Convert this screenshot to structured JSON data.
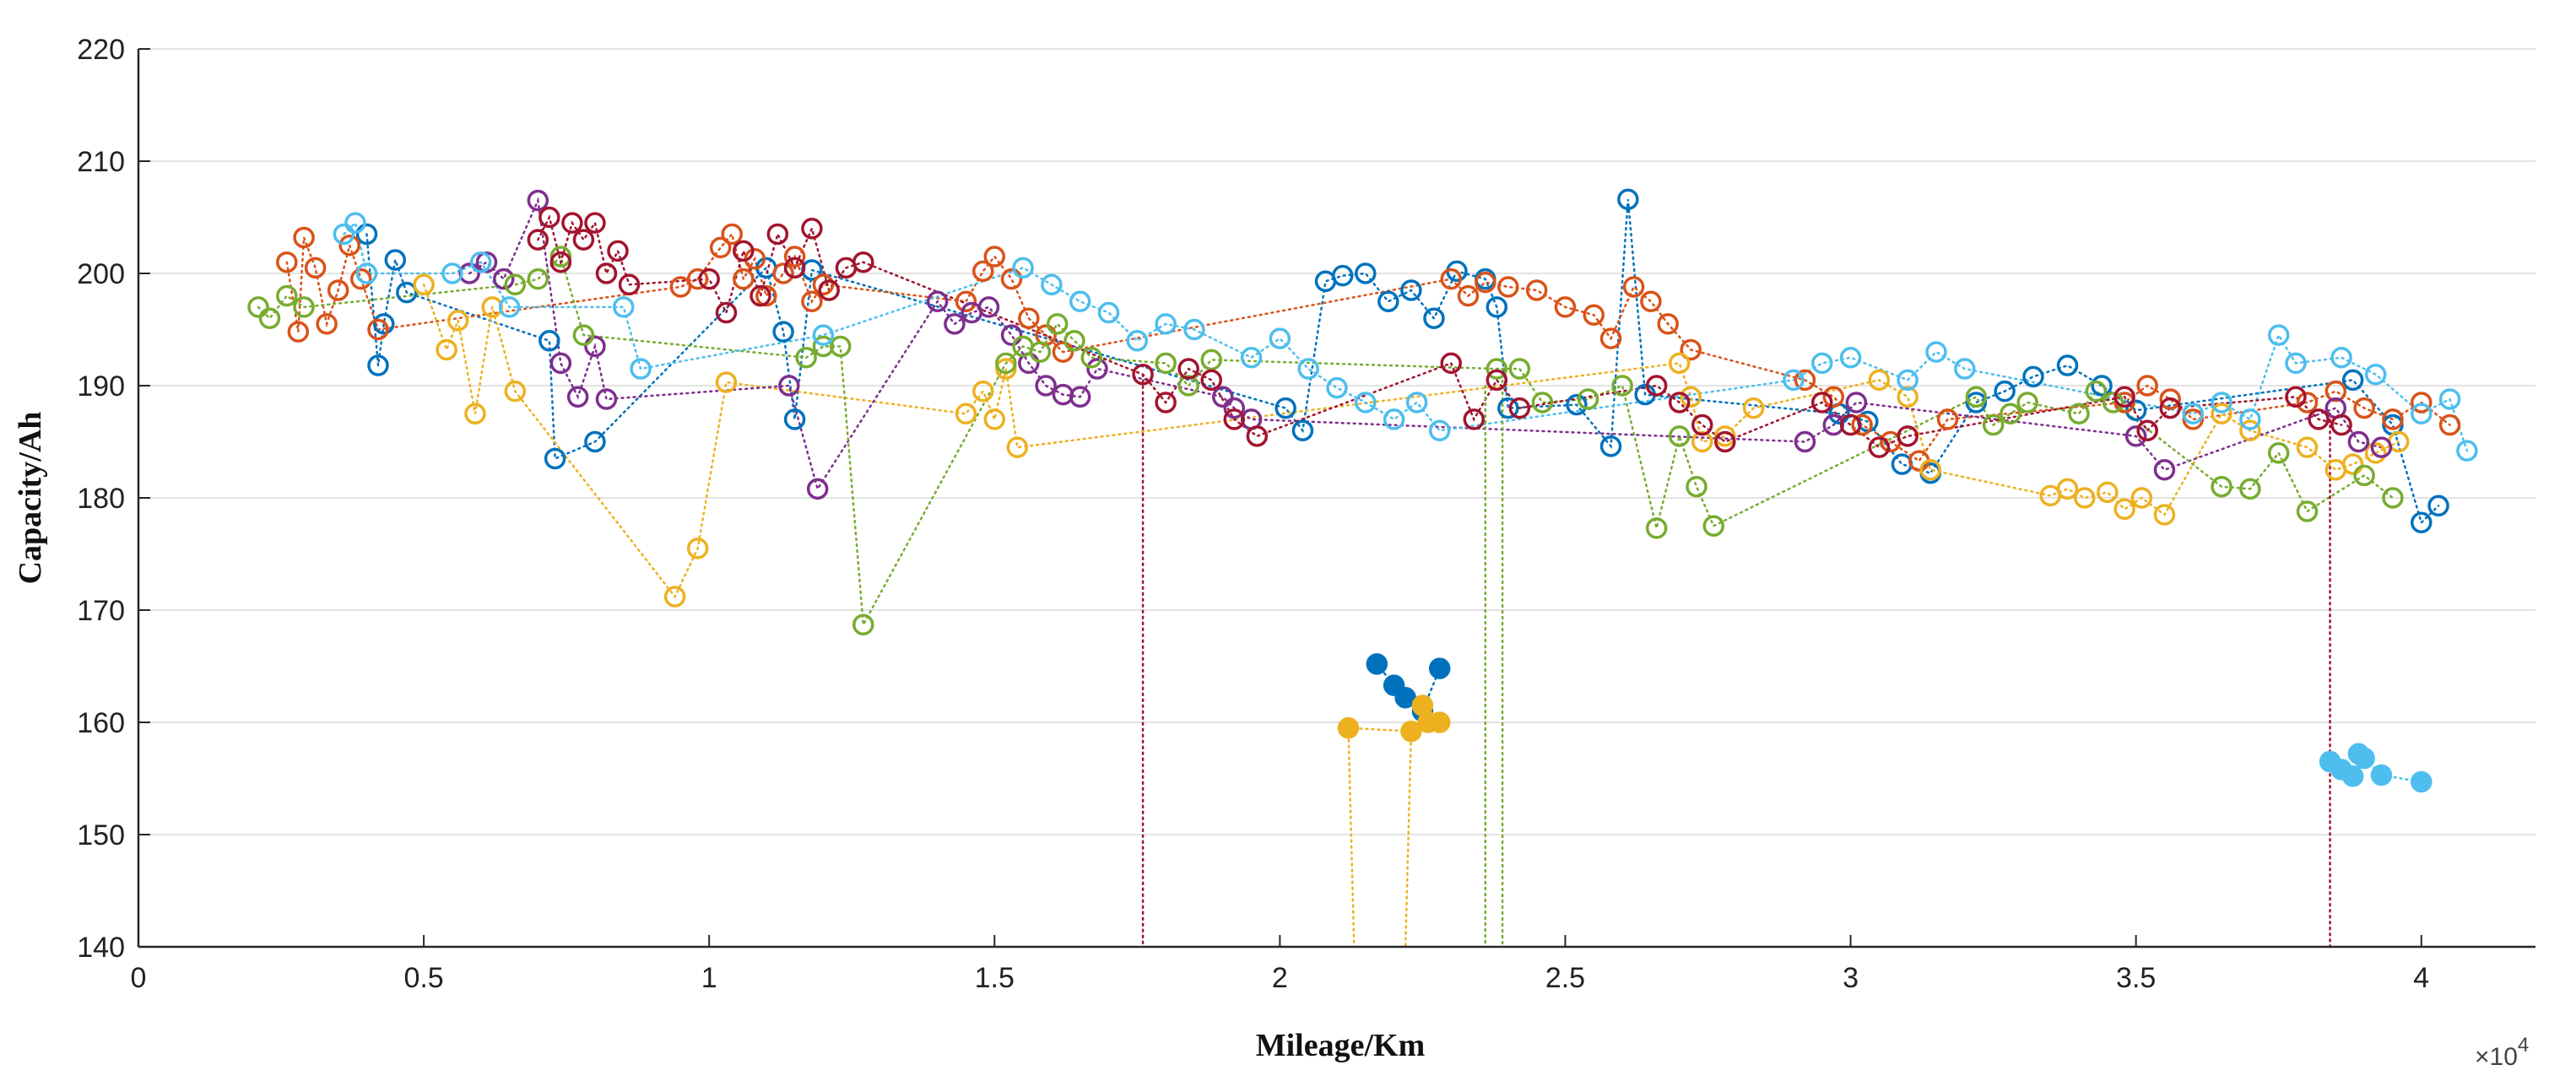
{
  "chart_data": {
    "type": "scatter",
    "title": "",
    "xlabel": "Mileage/Km",
    "ylabel": "Capacity/Ah",
    "x_multiplier_label": "×10",
    "x_multiplier_exponent": "4",
    "xlim": [
      0,
      4.2
    ],
    "ylim": [
      140,
      220
    ],
    "x_ticks": [
      0,
      0.5,
      1,
      1.5,
      2,
      2.5,
      3,
      3.5,
      4
    ],
    "x_tick_labels": [
      "0",
      "0.5",
      "1",
      "1.5",
      "2",
      "2.5",
      "3",
      "3.5",
      "4"
    ],
    "y_ticks": [
      140,
      150,
      160,
      170,
      180,
      190,
      200,
      210,
      220
    ],
    "y_tick_labels": [
      "140",
      "150",
      "160",
      "170",
      "180",
      "190",
      "200",
      "210",
      "220"
    ],
    "grid": "horizontal",
    "series": [
      {
        "name": "blue",
        "color": "#0072bd",
        "filled": false,
        "x": [
          0.4,
          0.42,
          0.43,
          0.45,
          0.47,
          0.72,
          0.73,
          0.8,
          1.1,
          1.13,
          1.15,
          1.18,
          2.01,
          2.04,
          2.08,
          2.11,
          2.15,
          2.19,
          2.23,
          2.27,
          2.31,
          2.36,
          2.38,
          2.4,
          2.52,
          2.58,
          2.61,
          2.64,
          2.98,
          3.03,
          3.09,
          3.14,
          3.22,
          3.27,
          3.32,
          3.38,
          3.44,
          3.5,
          3.88,
          3.95,
          4.0,
          4.03
        ],
        "y": [
          203.5,
          191.8,
          195.5,
          201.2,
          198.3,
          194.0,
          183.5,
          185.0,
          200.5,
          194.8,
          187.0,
          200.3,
          188.0,
          186.0,
          199.3,
          199.8,
          200.0,
          197.5,
          198.5,
          196.0,
          200.2,
          199.5,
          197.0,
          188.0,
          188.3,
          184.6,
          206.6,
          189.2,
          187.5,
          186.8,
          183.0,
          182.2,
          188.5,
          189.5,
          190.8,
          191.8,
          190.0,
          187.8,
          190.5,
          186.5,
          177.8,
          179.3
        ]
      },
      {
        "name": "orange",
        "color": "#d95319",
        "filled": false,
        "x": [
          0.26,
          0.28,
          0.29,
          0.31,
          0.33,
          0.35,
          0.37,
          0.39,
          0.42,
          0.95,
          0.98,
          1.02,
          1.04,
          1.06,
          1.08,
          1.1,
          1.13,
          1.15,
          1.18,
          1.2,
          1.45,
          1.48,
          1.5,
          1.53,
          1.56,
          1.59,
          1.62,
          2.3,
          2.33,
          2.36,
          2.4,
          2.45,
          2.5,
          2.55,
          2.58,
          2.62,
          2.65,
          2.68,
          2.72,
          2.92,
          2.97,
          3.02,
          3.07,
          3.12,
          3.17,
          3.48,
          3.52,
          3.56,
          3.6,
          3.8,
          3.85,
          3.9,
          3.95,
          4.0,
          4.05
        ],
        "y": [
          201.0,
          194.8,
          203.2,
          200.5,
          195.5,
          198.5,
          202.5,
          199.5,
          195.0,
          198.8,
          199.5,
          202.3,
          203.5,
          199.5,
          201.3,
          198.0,
          200.0,
          201.5,
          197.5,
          199.0,
          197.5,
          200.2,
          201.5,
          199.5,
          196.0,
          194.5,
          193.0,
          199.5,
          198.0,
          199.2,
          198.8,
          198.5,
          197.0,
          196.3,
          194.2,
          198.8,
          197.5,
          195.5,
          193.2,
          190.5,
          189.0,
          186.5,
          185.0,
          183.3,
          187.0,
          188.5,
          190.0,
          188.8,
          187.0,
          188.5,
          189.5,
          188.0,
          187.0,
          188.5,
          186.5
        ]
      },
      {
        "name": "yellow",
        "color": "#edb120",
        "filled": false,
        "x": [
          0.5,
          0.54,
          0.56,
          0.59,
          0.62,
          0.66,
          0.94,
          0.98,
          1.03,
          1.45,
          1.48,
          1.5,
          1.52,
          1.54,
          2.7,
          2.72,
          2.74,
          2.78,
          2.83,
          3.05,
          3.1,
          3.14,
          3.35,
          3.38,
          3.41,
          3.45,
          3.48,
          3.51,
          3.55,
          3.65,
          3.7,
          3.8,
          3.85,
          3.88,
          3.92,
          3.96
        ],
        "y": [
          199.0,
          193.2,
          195.8,
          187.5,
          197.0,
          189.5,
          171.2,
          175.5,
          190.3,
          187.5,
          189.5,
          187.0,
          191.5,
          184.5,
          192.0,
          189.0,
          185.0,
          185.5,
          188.0,
          190.5,
          189.0,
          182.5,
          180.2,
          180.8,
          180.0,
          180.5,
          179.0,
          180.0,
          178.5,
          187.5,
          186.0,
          184.5,
          182.5,
          183.0,
          184.0,
          185.0
        ]
      },
      {
        "name": "purple",
        "color": "#7e2f8e",
        "filled": false,
        "x": [
          0.58,
          0.61,
          0.64,
          0.7,
          0.74,
          0.77,
          0.8,
          0.82,
          1.14,
          1.19,
          1.4,
          1.43,
          1.46,
          1.49,
          1.53,
          1.56,
          1.59,
          1.62,
          1.65,
          1.68,
          1.9,
          1.92,
          1.95,
          2.92,
          2.97,
          3.01,
          3.5,
          3.55,
          3.85,
          3.89,
          3.93
        ],
        "y": [
          200.0,
          201.0,
          199.5,
          206.5,
          192.0,
          189.0,
          193.5,
          188.8,
          190.0,
          180.8,
          197.5,
          195.5,
          196.5,
          197.0,
          194.5,
          192.0,
          190.0,
          189.2,
          189.0,
          191.5,
          189.0,
          188.0,
          187.0,
          185.0,
          186.5,
          188.5,
          185.5,
          182.5,
          188.0,
          185.0,
          184.5
        ]
      },
      {
        "name": "green",
        "color": "#77ac30",
        "filled": false,
        "x": [
          0.21,
          0.23,
          0.26,
          0.29,
          0.66,
          0.7,
          0.74,
          0.78,
          1.17,
          1.2,
          1.23,
          1.27,
          1.52,
          1.55,
          1.58,
          1.61,
          1.64,
          1.67,
          1.8,
          1.84,
          1.88,
          2.38,
          2.42,
          2.46,
          2.54,
          2.6,
          2.66,
          2.7,
          2.73,
          2.76,
          3.22,
          3.25,
          3.28,
          3.31,
          3.4,
          3.43,
          3.46,
          3.65,
          3.7,
          3.75,
          3.8,
          3.9,
          3.95
        ],
        "y": [
          197.0,
          196.0,
          198.0,
          197.0,
          199.0,
          199.5,
          201.5,
          194.5,
          192.5,
          193.5,
          193.5,
          168.7,
          192.0,
          193.5,
          193.0,
          195.5,
          194.0,
          192.5,
          192.0,
          190.0,
          192.3,
          191.5,
          191.5,
          188.5,
          188.8,
          190.0,
          177.3,
          185.5,
          181.0,
          177.5,
          189.0,
          186.5,
          187.5,
          188.5,
          187.5,
          189.5,
          188.5,
          181.0,
          180.8,
          184.0,
          178.8,
          182.0,
          180.0
        ]
      },
      {
        "name": "cyan",
        "color": "#4dbeee",
        "filled": false,
        "x": [
          0.36,
          0.38,
          0.4,
          0.55,
          0.6,
          0.65,
          0.85,
          0.88,
          1.2,
          1.55,
          1.6,
          1.65,
          1.7,
          1.75,
          1.8,
          1.85,
          1.95,
          2.0,
          2.05,
          2.1,
          2.15,
          2.2,
          2.24,
          2.28,
          2.9,
          2.95,
          3.0,
          3.1,
          3.15,
          3.2,
          3.6,
          3.65,
          3.7,
          3.75,
          3.78,
          3.86,
          3.92,
          4.0,
          4.05,
          4.08
        ],
        "y": [
          203.5,
          204.5,
          200.0,
          200.0,
          201.0,
          197.0,
          197.0,
          191.5,
          194.5,
          200.5,
          199.0,
          197.5,
          196.5,
          194.0,
          195.5,
          195.0,
          192.5,
          194.2,
          191.5,
          189.8,
          188.5,
          187.0,
          188.5,
          186.0,
          190.5,
          192.0,
          192.5,
          190.5,
          193.0,
          191.5,
          187.5,
          188.5,
          187.0,
          194.5,
          192.0,
          192.5,
          191.0,
          187.5,
          188.8,
          184.2
        ]
      },
      {
        "name": "red",
        "color": "#a2142f",
        "filled": false,
        "x": [
          0.7,
          0.72,
          0.74,
          0.76,
          0.78,
          0.8,
          0.82,
          0.84,
          0.86,
          1.0,
          1.03,
          1.06,
          1.09,
          1.12,
          1.15,
          1.18,
          1.21,
          1.24,
          1.27,
          1.76,
          1.8,
          1.84,
          1.88,
          1.92,
          1.96,
          2.3,
          2.34,
          2.38,
          2.42,
          2.66,
          2.7,
          2.74,
          2.78,
          2.95,
          3.0,
          3.05,
          3.1,
          3.48,
          3.52,
          3.56,
          3.78,
          3.82,
          3.86
        ],
        "y": [
          203.0,
          205.0,
          201.0,
          204.5,
          203.0,
          204.5,
          200.0,
          202.0,
          199.0,
          199.5,
          196.5,
          202.0,
          198.0,
          203.5,
          200.5,
          204.0,
          198.5,
          200.5,
          201.0,
          191.0,
          188.5,
          191.5,
          190.5,
          187.0,
          185.5,
          192.0,
          187.0,
          190.5,
          188.0,
          190.0,
          188.5,
          186.5,
          185.0,
          188.5,
          186.5,
          184.5,
          185.5,
          189.0,
          186.0,
          188.0,
          189.0,
          187.0,
          186.5
        ]
      },
      {
        "name": "blue-filled",
        "color": "#0072bd",
        "filled": true,
        "x": [
          2.17,
          2.2,
          2.22,
          2.25,
          2.28
        ],
        "y": [
          165.2,
          163.3,
          162.2,
          161.0,
          164.8
        ]
      },
      {
        "name": "yellow-filled",
        "color": "#edb120",
        "filled": true,
        "x": [
          2.12,
          2.23,
          2.25,
          2.26,
          2.28
        ],
        "y": [
          159.5,
          159.2,
          161.5,
          160.0,
          160.0
        ]
      },
      {
        "name": "cyan-filled",
        "color": "#4dbeee",
        "filled": true,
        "x": [
          3.84,
          3.86,
          3.88,
          3.89,
          3.9,
          3.93,
          4.0
        ],
        "y": [
          156.5,
          155.8,
          155.2,
          157.2,
          156.8,
          155.3,
          154.7
        ]
      }
    ],
    "drop_lines": [
      {
        "color": "#a2142f",
        "x": [
          1.76,
          1.76
        ],
        "y": [
          191.0,
          140
        ]
      },
      {
        "color": "#edb120",
        "x": [
          2.12,
          2.13
        ],
        "y": [
          159.5,
          140
        ]
      },
      {
        "color": "#edb120",
        "x": [
          2.23,
          2.22
        ],
        "y": [
          159.2,
          140
        ]
      },
      {
        "color": "#77ac30",
        "x": [
          2.36,
          2.36
        ],
        "y": [
          190.0,
          140
        ]
      },
      {
        "color": "#77ac30",
        "x": [
          2.39,
          2.39
        ],
        "y": [
          191.5,
          140
        ]
      },
      {
        "color": "#a2142f",
        "x": [
          3.84,
          3.84
        ],
        "y": [
          187.5,
          140
        ]
      }
    ]
  }
}
